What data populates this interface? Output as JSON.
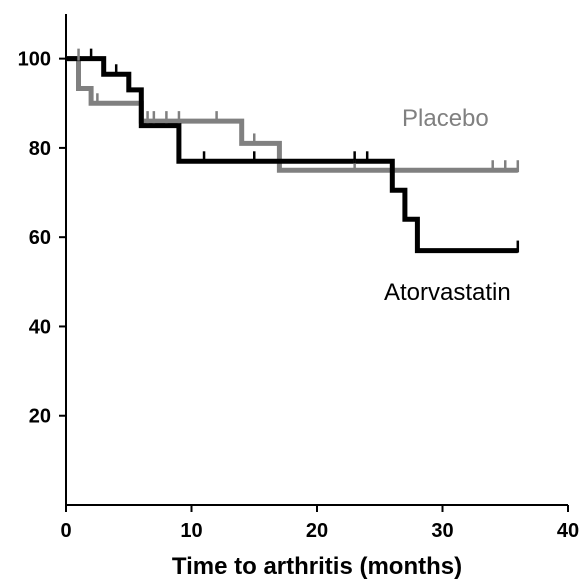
{
  "chart_data": {
    "type": "line",
    "step": true,
    "xlabel": "Time to arthritis (months)",
    "ylabel": "",
    "xlim": [
      0,
      40
    ],
    "ylim": [
      0,
      110
    ],
    "xticks": [
      0,
      10,
      20,
      30,
      40
    ],
    "yticks": [
      20,
      40,
      60,
      80,
      100
    ],
    "grid": false,
    "series": [
      {
        "name": "Placebo",
        "color": "#808080",
        "x": [
          0,
          1,
          1,
          2,
          2,
          6,
          6,
          14,
          14,
          17,
          17,
          36
        ],
        "y": [
          100,
          100,
          93.3,
          93.3,
          90,
          90,
          86,
          86,
          81,
          81,
          75,
          75
        ],
        "censored_x": [
          1,
          2.5,
          6.5,
          7,
          8,
          9,
          12,
          15,
          23,
          34,
          35,
          36
        ],
        "censored_y": [
          100,
          90,
          86,
          86,
          86,
          86,
          86,
          81,
          75,
          75,
          75,
          75
        ]
      },
      {
        "name": "Atorvastatin",
        "color": "#000000",
        "x": [
          0,
          3,
          3,
          5,
          5,
          6,
          6,
          9,
          9,
          26,
          26,
          27,
          27,
          28,
          28,
          36
        ],
        "y": [
          100,
          100,
          96.5,
          96.5,
          93,
          93,
          85,
          85,
          77,
          77,
          70.5,
          70.5,
          64,
          64,
          57,
          57
        ],
        "censored_x": [
          2,
          4,
          11,
          15,
          23,
          24,
          36
        ],
        "censored_y": [
          100,
          96.5,
          77,
          77,
          77,
          77,
          57
        ]
      }
    ]
  }
}
